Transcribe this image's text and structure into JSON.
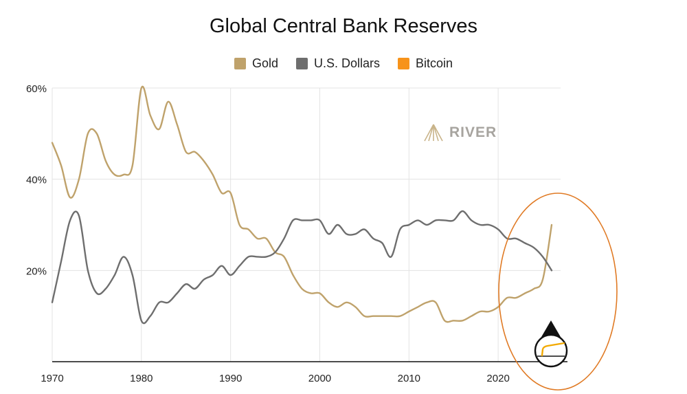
{
  "chart_data": {
    "type": "line",
    "title": "Global Central Bank Reserves",
    "xlabel": "",
    "ylabel": "",
    "xlim": [
      1970,
      2027
    ],
    "ylim": [
      0,
      60
    ],
    "x_ticks": [
      "1970",
      "1980",
      "1990",
      "2000",
      "2010",
      "2020"
    ],
    "y_ticks": [
      {
        "value": 20,
        "label": "20%"
      },
      {
        "value": 40,
        "label": "40%"
      },
      {
        "value": 60,
        "label": "60%"
      }
    ],
    "grid": true,
    "legend_position": "top-center",
    "series": [
      {
        "name": "Gold",
        "color": "#bfa26b",
        "points": [
          [
            1970,
            48
          ],
          [
            1971,
            43
          ],
          [
            1972,
            36
          ],
          [
            1973,
            40
          ],
          [
            1974,
            50
          ],
          [
            1975,
            50
          ],
          [
            1976,
            44
          ],
          [
            1977,
            41
          ],
          [
            1978,
            41
          ],
          [
            1979,
            43
          ],
          [
            1980,
            60
          ],
          [
            1981,
            54
          ],
          [
            1982,
            51
          ],
          [
            1983,
            57
          ],
          [
            1984,
            52
          ],
          [
            1985,
            46
          ],
          [
            1986,
            46
          ],
          [
            1987,
            44
          ],
          [
            1988,
            41
          ],
          [
            1989,
            37
          ],
          [
            1990,
            37
          ],
          [
            1991,
            30
          ],
          [
            1992,
            29
          ],
          [
            1993,
            27
          ],
          [
            1994,
            27
          ],
          [
            1995,
            24
          ],
          [
            1996,
            23
          ],
          [
            1997,
            19
          ],
          [
            1998,
            16
          ],
          [
            1999,
            15
          ],
          [
            2000,
            15
          ],
          [
            2001,
            13
          ],
          [
            2002,
            12
          ],
          [
            2003,
            13
          ],
          [
            2004,
            12
          ],
          [
            2005,
            10
          ],
          [
            2006,
            10
          ],
          [
            2007,
            10
          ],
          [
            2008,
            10
          ],
          [
            2009,
            10
          ],
          [
            2010,
            11
          ],
          [
            2011,
            12
          ],
          [
            2012,
            13
          ],
          [
            2013,
            13
          ],
          [
            2014,
            9
          ],
          [
            2015,
            9
          ],
          [
            2016,
            9
          ],
          [
            2017,
            10
          ],
          [
            2018,
            11
          ],
          [
            2019,
            11
          ],
          [
            2020,
            12
          ],
          [
            2021,
            14
          ],
          [
            2022,
            14
          ],
          [
            2023,
            15
          ],
          [
            2024,
            16
          ],
          [
            2025,
            18
          ],
          [
            2026,
            30
          ]
        ]
      },
      {
        "name": "U.S. Dollars",
        "color": "#6e6e6e",
        "points": [
          [
            1970,
            13
          ],
          [
            1971,
            22
          ],
          [
            1972,
            31
          ],
          [
            1973,
            32
          ],
          [
            1974,
            20
          ],
          [
            1975,
            15
          ],
          [
            1976,
            16
          ],
          [
            1977,
            19
          ],
          [
            1978,
            23
          ],
          [
            1979,
            19
          ],
          [
            1980,
            9
          ],
          [
            1981,
            10
          ],
          [
            1982,
            13
          ],
          [
            1983,
            13
          ],
          [
            1984,
            15
          ],
          [
            1985,
            17
          ],
          [
            1986,
            16
          ],
          [
            1987,
            18
          ],
          [
            1988,
            19
          ],
          [
            1989,
            21
          ],
          [
            1990,
            19
          ],
          [
            1991,
            21
          ],
          [
            1992,
            23
          ],
          [
            1993,
            23
          ],
          [
            1994,
            23
          ],
          [
            1995,
            24
          ],
          [
            1996,
            27
          ],
          [
            1997,
            31
          ],
          [
            1998,
            31
          ],
          [
            1999,
            31
          ],
          [
            2000,
            31
          ],
          [
            2001,
            28
          ],
          [
            2002,
            30
          ],
          [
            2003,
            28
          ],
          [
            2004,
            28
          ],
          [
            2005,
            29
          ],
          [
            2006,
            27
          ],
          [
            2007,
            26
          ],
          [
            2008,
            23
          ],
          [
            2009,
            29
          ],
          [
            2010,
            30
          ],
          [
            2011,
            31
          ],
          [
            2012,
            30
          ],
          [
            2013,
            31
          ],
          [
            2014,
            31
          ],
          [
            2015,
            31
          ],
          [
            2016,
            33
          ],
          [
            2017,
            31
          ],
          [
            2018,
            30
          ],
          [
            2019,
            30
          ],
          [
            2020,
            29
          ],
          [
            2021,
            27
          ],
          [
            2022,
            27
          ],
          [
            2023,
            26
          ],
          [
            2024,
            25
          ],
          [
            2025,
            23
          ],
          [
            2026,
            20
          ]
        ]
      },
      {
        "name": "Bitcoin",
        "color": "#f7931a",
        "points": []
      }
    ]
  },
  "logo": {
    "text": "RIVER",
    "color": "#a7a49f"
  },
  "highlight_ellipse": {
    "color": "#e07a24",
    "note_icon": "bitcoin-drop-icon"
  }
}
